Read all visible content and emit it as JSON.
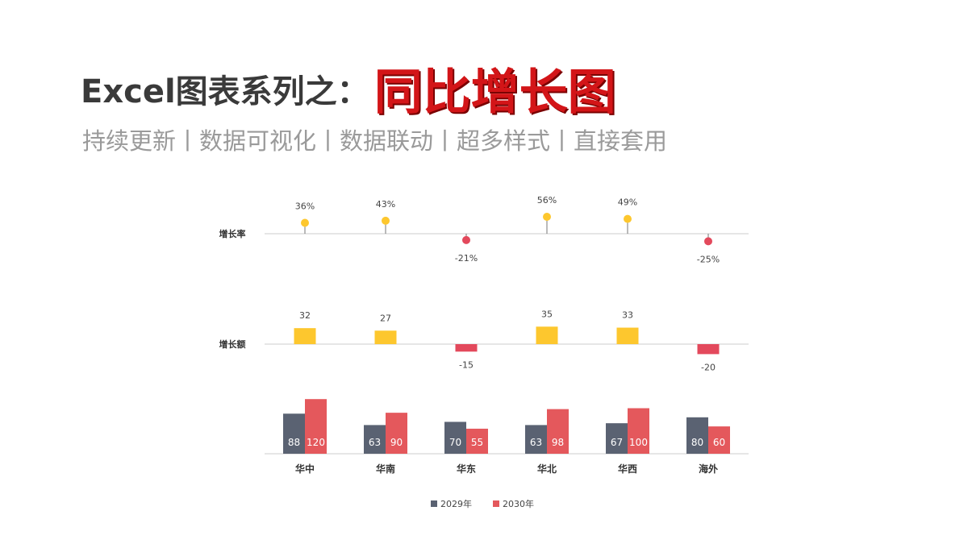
{
  "header": {
    "title_prefix": "Excel图表系列之：",
    "title_highlight": "同比增长图",
    "subtitle": "持续更新丨数据可视化丨数据联动丨超多样式丨直接套用"
  },
  "colors": {
    "series_2029": "#5a6272",
    "series_2030": "#e4585c",
    "positive": "#fdc72e",
    "negative": "#e3495c",
    "axis": "#cccccc",
    "stem": "#777777"
  },
  "chart_data": {
    "type": "bar",
    "categories": [
      "华中",
      "华南",
      "华东",
      "华北",
      "华西",
      "海外"
    ],
    "series": [
      {
        "name": "2029年",
        "values": [
          88,
          63,
          70,
          63,
          67,
          80
        ]
      },
      {
        "name": "2030年",
        "values": [
          120,
          90,
          55,
          98,
          100,
          60
        ]
      }
    ],
    "growth_rate": {
      "label": "增长率",
      "values": [
        36,
        43,
        -21,
        56,
        49,
        -25
      ],
      "labels": [
        "36%",
        "43%",
        "-21%",
        "56%",
        "49%",
        "-25%"
      ]
    },
    "growth_amount": {
      "label": "增长额",
      "values": [
        32,
        27,
        -15,
        35,
        33,
        -20
      ],
      "labels": [
        "32",
        "27",
        "-15",
        "35",
        "33",
        "-20"
      ]
    },
    "legend_position": "bottom",
    "grid": false
  }
}
